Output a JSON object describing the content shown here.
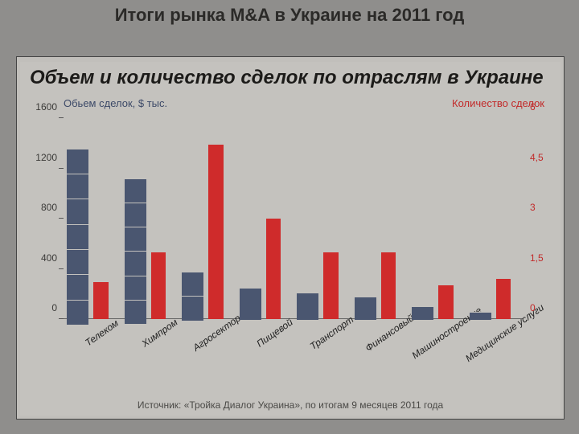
{
  "slide": {
    "title": "Итоги рынка M&A в Украине на 2011 год",
    "background_color": "#8f8e8c"
  },
  "chart": {
    "type": "grouped-bar-dual-axis",
    "title": "Объем и количество сделок по отраслям в Украине",
    "title_fontsize": 24,
    "panel_bg": "#c4c2be",
    "left_axis": {
      "label": "Обьем сделок, $ тыс.",
      "color": "#3d4a68",
      "min": 0,
      "max": 1600,
      "ticks": [
        0,
        400,
        800,
        1200,
        1600
      ]
    },
    "right_axis": {
      "label": "Количество сделок",
      "color": "#c22a2a",
      "min": 0,
      "max": 6,
      "ticks": [
        0,
        1.5,
        3,
        4.5,
        6
      ]
    },
    "bar_colors": {
      "volume": "#4a5670",
      "count": "#cf2b2b"
    },
    "bar_segment_height": 200,
    "categories": [
      {
        "label": "Телеком",
        "volume": 1360,
        "count": 1.1
      },
      {
        "label": "Химпром",
        "volume": 1120,
        "count": 2.0
      },
      {
        "label": "Агросектор",
        "volume": 380,
        "count": 5.2
      },
      {
        "label": "Пищевой",
        "volume": 250,
        "count": 3.0
      },
      {
        "label": "Транспорт",
        "volume": 210,
        "count": 2.0
      },
      {
        "label": "Финансовый",
        "volume": 180,
        "count": 2.0
      },
      {
        "label": "Машиностроение",
        "volume": 100,
        "count": 1.0
      },
      {
        "label": "Медицинские услуги",
        "volume": 60,
        "count": 1.2
      }
    ],
    "source": "Источник: «Тройка Диалог Украина», по итогам 9 месяцев 2011 года"
  }
}
